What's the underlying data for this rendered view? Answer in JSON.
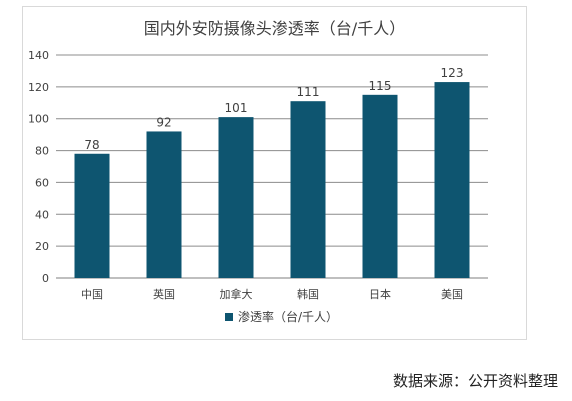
{
  "chart_data": {
    "type": "bar",
    "title": "国内外安防摄像头渗透率（台/千人）",
    "categories": [
      "中国",
      "英国",
      "加拿大",
      "韩国",
      "日本",
      "美国"
    ],
    "series": [
      {
        "name": "渗透率（台/千人）",
        "values": [
          78,
          92,
          101,
          111,
          115,
          123
        ]
      }
    ],
    "ylim": [
      0,
      140
    ],
    "yticks": [
      0,
      20,
      40,
      60,
      80,
      100,
      120,
      140
    ],
    "grid": true,
    "legend": "bottom",
    "colors": {
      "bar": "#0e5570",
      "grid": "#8c8c8c",
      "axis": "#7f7f7f"
    }
  },
  "source": "数据来源：公开资料整理"
}
